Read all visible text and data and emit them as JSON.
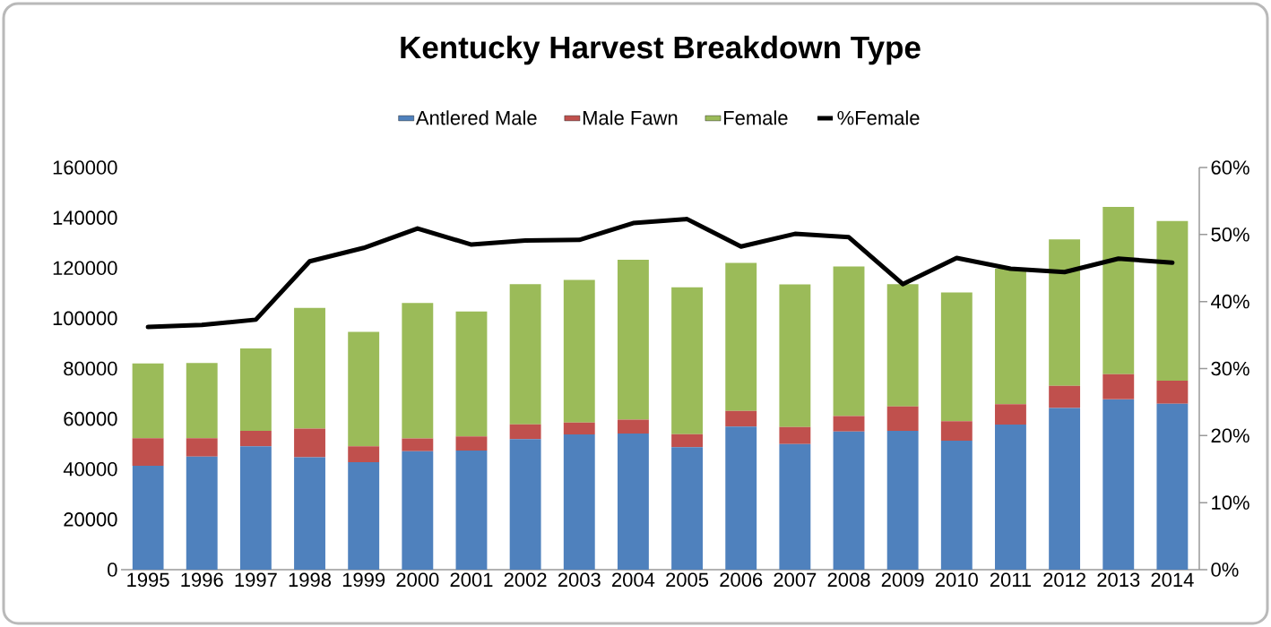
{
  "chart_data": {
    "type": "bar",
    "stacked": true,
    "title": "Kentucky Harvest Breakdown Type",
    "categories": [
      "1995",
      "1996",
      "1997",
      "1998",
      "1999",
      "2000",
      "2001",
      "2002",
      "2003",
      "2004",
      "2005",
      "2006",
      "2007",
      "2008",
      "2009",
      "2010",
      "2011",
      "2012",
      "2013",
      "2014"
    ],
    "series": [
      {
        "name": "Antlered  Male",
        "color": "#4f81bd",
        "values": [
          41300,
          45000,
          49100,
          44700,
          42800,
          47100,
          47400,
          51900,
          53800,
          54200,
          48700,
          56900,
          50000,
          55000,
          55200,
          51300,
          57700,
          64300,
          67800,
          66000
        ]
      },
      {
        "name": "Male Fawn",
        "color": "#c0504d",
        "values": [
          11000,
          7300,
          6100,
          11400,
          6300,
          5100,
          5600,
          5900,
          4700,
          5500,
          5200,
          6300,
          6700,
          6100,
          9700,
          7800,
          8100,
          8800,
          10000,
          9200
        ]
      },
      {
        "name": "Female",
        "color": "#9bbb59",
        "values": [
          29700,
          29900,
          32800,
          48000,
          45500,
          53900,
          49700,
          55800,
          56800,
          63600,
          58400,
          58800,
          56800,
          59500,
          48700,
          51200,
          53900,
          58300,
          66500,
          63500
        ]
      },
      {
        "name": "%Female",
        "type": "line",
        "axis": "y2",
        "color": "#000000",
        "values": [
          36.2,
          36.5,
          37.3,
          46.0,
          48.0,
          50.9,
          48.5,
          49.1,
          49.2,
          51.7,
          52.3,
          48.2,
          50.1,
          49.6,
          42.6,
          46.5,
          44.9,
          44.4,
          46.4,
          45.8
        ]
      }
    ],
    "ylim": [
      0,
      160000
    ],
    "yticks": [
      0,
      20000,
      40000,
      60000,
      80000,
      100000,
      120000,
      140000,
      160000
    ],
    "y2lim": [
      0,
      60
    ],
    "y2ticks": [
      {
        "value": 0,
        "label": "0%"
      },
      {
        "value": 10,
        "label": "10%"
      },
      {
        "value": 20,
        "label": "20%"
      },
      {
        "value": 30,
        "label": "30%"
      },
      {
        "value": 40,
        "label": "40%"
      },
      {
        "value": 50,
        "label": "50%"
      },
      {
        "value": 60,
        "label": "60%"
      }
    ],
    "legend": "top"
  }
}
